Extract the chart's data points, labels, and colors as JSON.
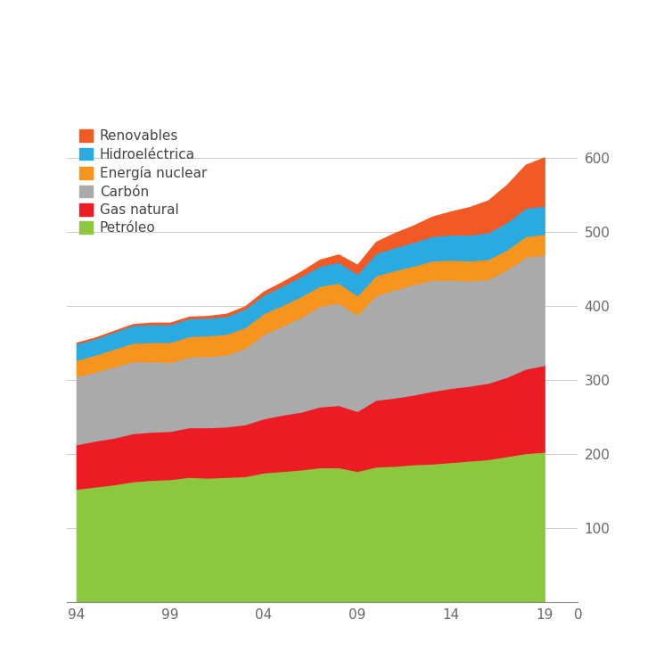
{
  "years": [
    1994,
    1995,
    1996,
    1997,
    1998,
    1999,
    2000,
    2001,
    2002,
    2003,
    2004,
    2005,
    2006,
    2007,
    2008,
    2009,
    2010,
    2011,
    2012,
    2013,
    2014,
    2015,
    2016,
    2017,
    2018,
    2019
  ],
  "petroleo": [
    153,
    156,
    159,
    163,
    165,
    166,
    169,
    168,
    169,
    170,
    175,
    177,
    179,
    182,
    182,
    177,
    183,
    184,
    186,
    187,
    189,
    191,
    193,
    197,
    201,
    203
  ],
  "gas_natural": [
    60,
    62,
    63,
    65,
    65,
    65,
    67,
    68,
    68,
    70,
    73,
    76,
    78,
    82,
    84,
    81,
    90,
    92,
    94,
    98,
    100,
    101,
    103,
    107,
    114,
    117
  ],
  "carbon": [
    92,
    93,
    96,
    97,
    95,
    93,
    95,
    96,
    97,
    103,
    114,
    120,
    128,
    136,
    138,
    130,
    141,
    146,
    149,
    150,
    146,
    142,
    140,
    145,
    151,
    149
  ],
  "nuclear": [
    22,
    23,
    24,
    25,
    26,
    27,
    28,
    28,
    28,
    28,
    28,
    28,
    28,
    27,
    27,
    26,
    27,
    26,
    25,
    26,
    27,
    27,
    27,
    27,
    28,
    28
  ],
  "hidroelectrica": [
    22,
    22,
    23,
    24,
    24,
    24,
    24,
    24,
    24,
    25,
    25,
    26,
    27,
    27,
    28,
    29,
    30,
    31,
    32,
    33,
    34,
    35,
    36,
    37,
    38,
    38
  ],
  "renovables": [
    1,
    1,
    1,
    1,
    2,
    2,
    2,
    2,
    3,
    3,
    4,
    5,
    6,
    8,
    10,
    12,
    15,
    19,
    22,
    26,
    31,
    37,
    43,
    50,
    58,
    65
  ],
  "colors": {
    "petroleo": "#8DC63F",
    "gas_natural": "#ED1C24",
    "carbon": "#AAAAAA",
    "nuclear": "#F7941D",
    "hidroelectrica": "#29ABE2",
    "renovables": "#F15A24"
  },
  "labels": {
    "petroleo": "Petróleo",
    "gas_natural": "Gas natural",
    "carbon": "Carbón",
    "nuclear": "Energía nuclear",
    "hidroelectrica": "Hidroeléctrica",
    "renovables": "Renovables"
  },
  "xticks": [
    1994,
    1999,
    2004,
    2009,
    2014,
    2019
  ],
  "xticklabels": [
    "94",
    "99",
    "04",
    "09",
    "14",
    "19"
  ],
  "yticks": [
    100,
    200,
    300,
    400,
    500,
    600
  ],
  "ylim": [
    0,
    650
  ],
  "xlim_min": 1993.5,
  "xlim_max": 2020.8,
  "extra_xtick_val": 2020.8,
  "extra_xticklabel": "0",
  "background_color": "#FFFFFF",
  "grid_color": "#CCCCCC",
  "legend_fontsize": 11,
  "tick_fontsize": 11
}
